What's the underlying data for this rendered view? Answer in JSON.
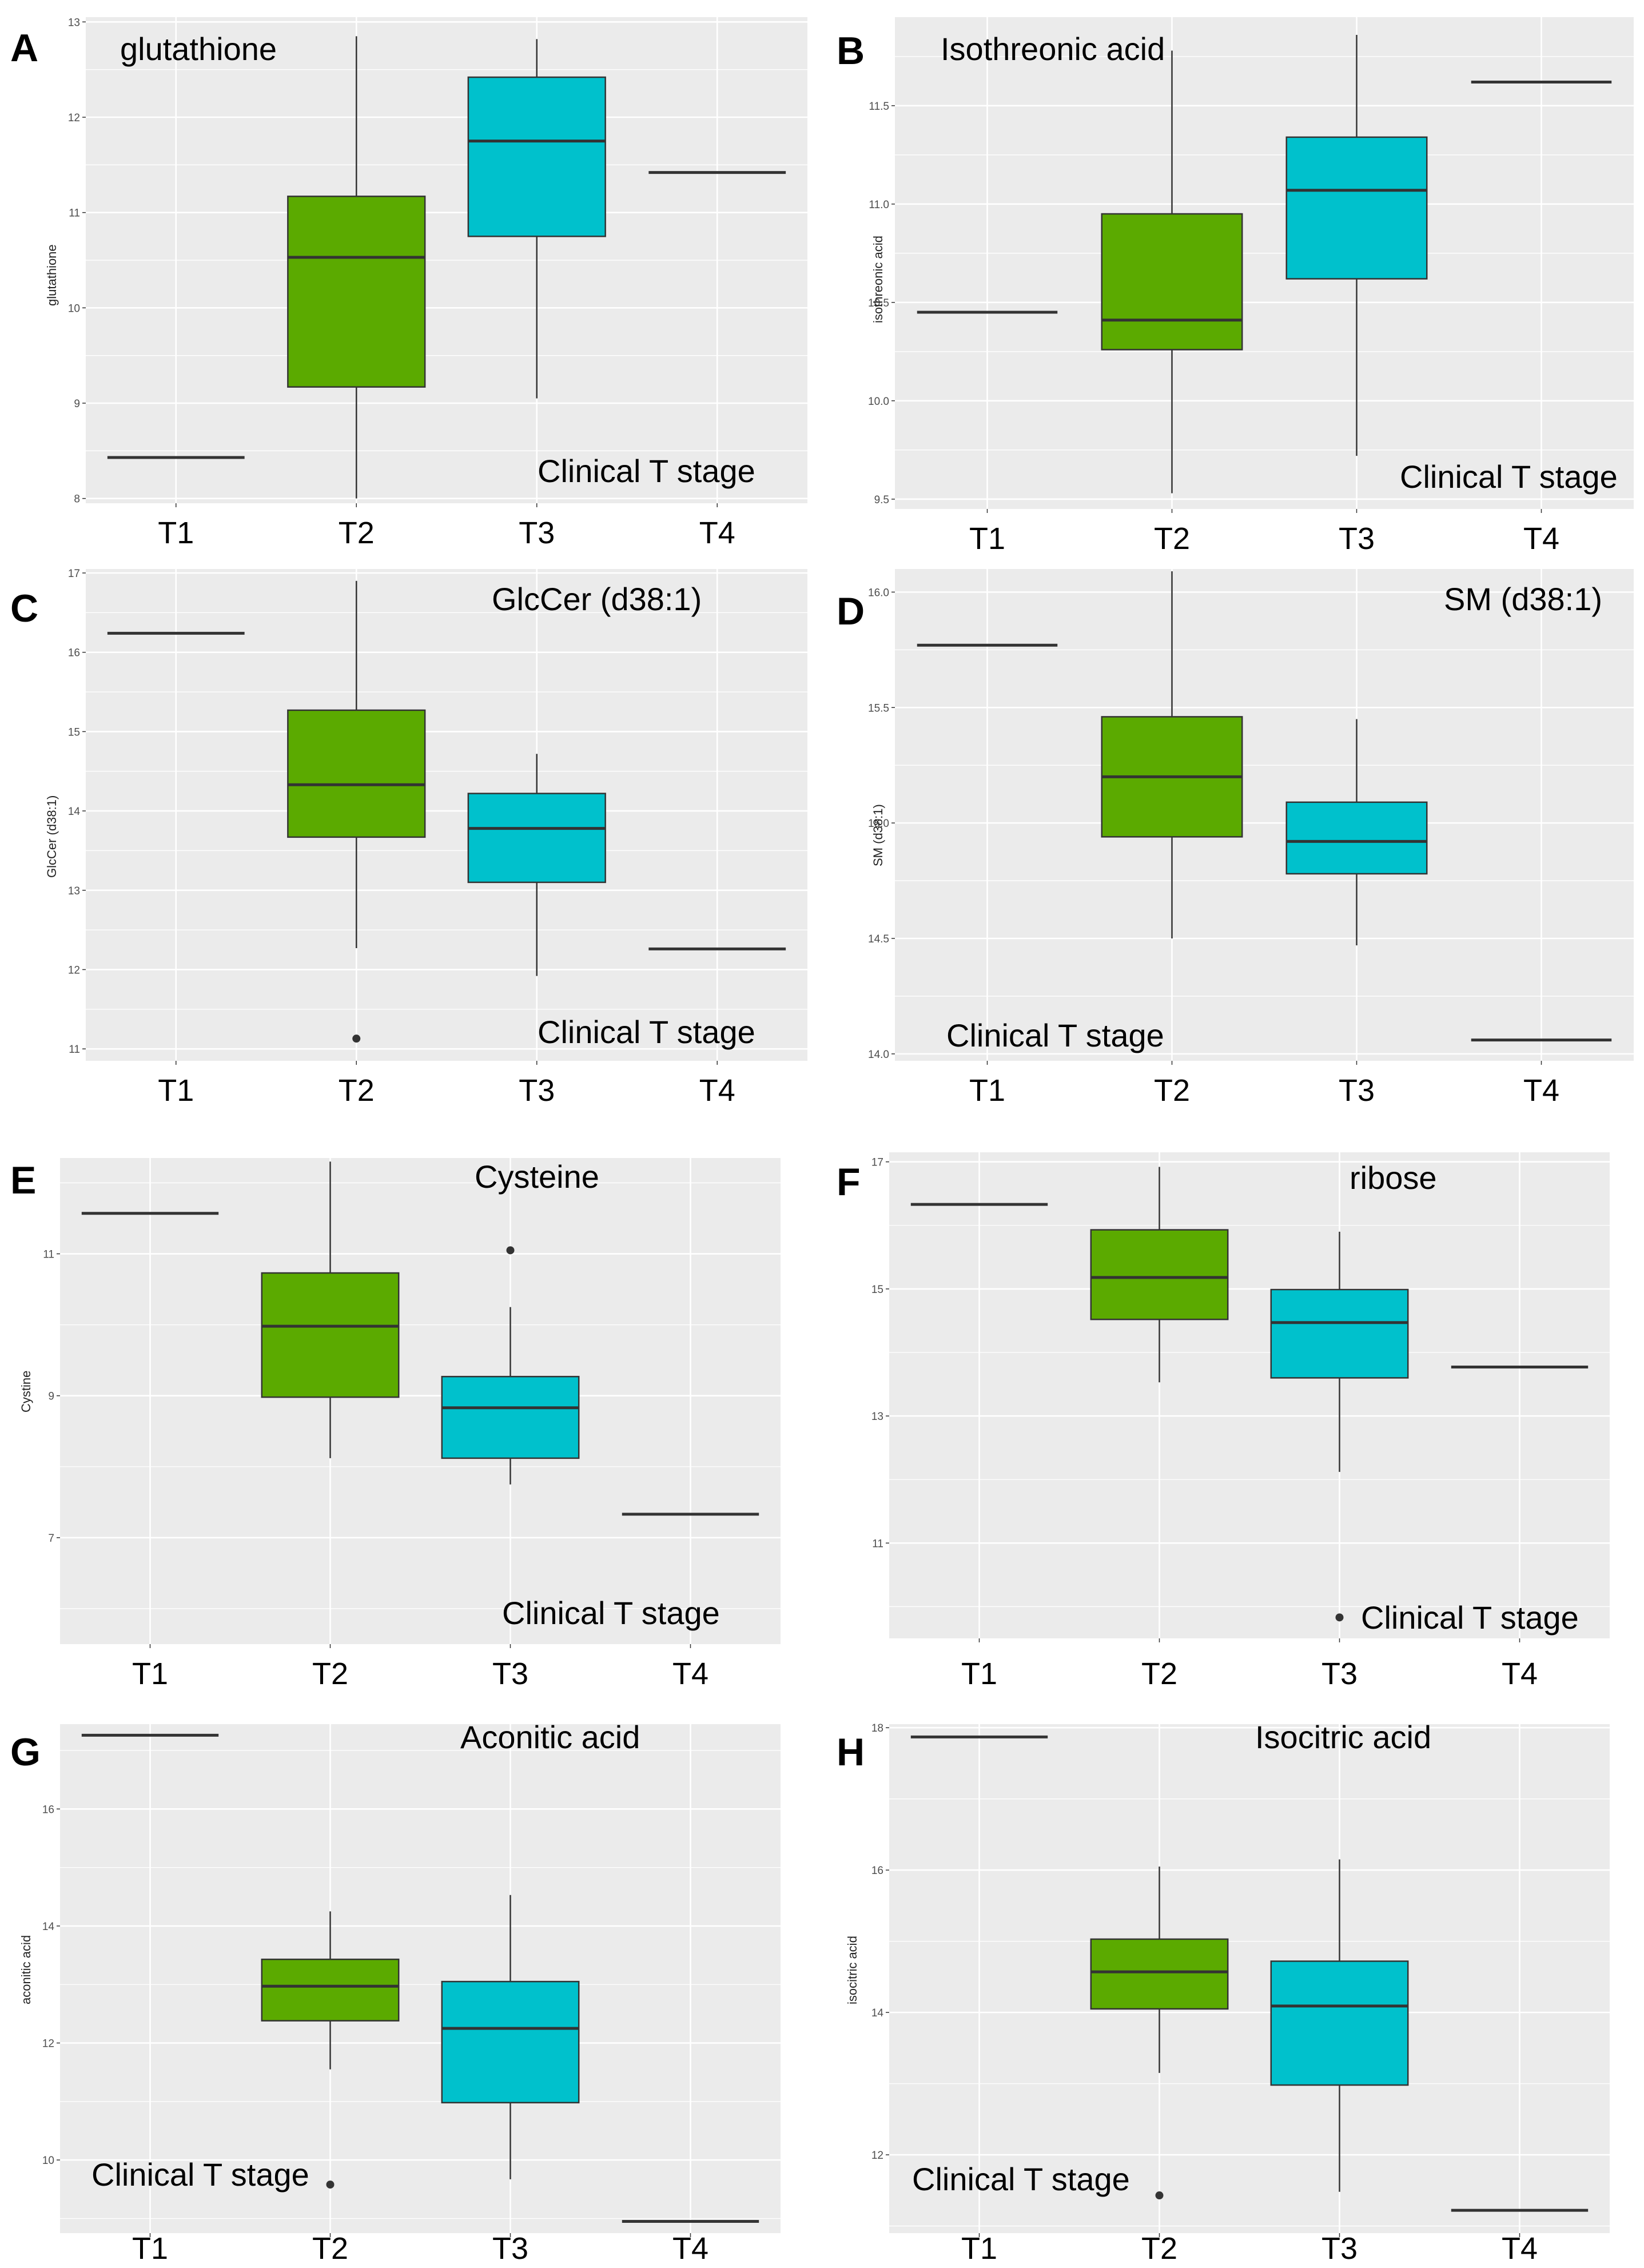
{
  "figure": {
    "colors": {
      "panel_bg": "#EBEBEB",
      "grid": "#FFFFFF",
      "T2_fill": "#5BAA00",
      "T3_fill": "#00C1CC",
      "line": "#333333"
    }
  },
  "chart_data": [
    {
      "panel": "A",
      "type": "boxplot",
      "title": "glutathione",
      "ylabel": "glutathione",
      "xlabel": "Clinical T stage",
      "categories": [
        "T1",
        "T2",
        "T3",
        "T4"
      ],
      "ylim": [
        7.95,
        13.05
      ],
      "yticks": [
        8,
        9,
        10,
        11,
        12,
        13
      ],
      "series": [
        {
          "name": "T1",
          "min": 8.43,
          "q1": 8.43,
          "median": 8.43,
          "q3": 8.43,
          "max": 8.43,
          "outliers": []
        },
        {
          "name": "T2",
          "min": 8.0,
          "q1": 9.17,
          "median": 10.53,
          "q3": 11.17,
          "max": 12.85,
          "outliers": []
        },
        {
          "name": "T3",
          "min": 9.05,
          "q1": 10.75,
          "median": 11.75,
          "q3": 12.42,
          "max": 12.82,
          "outliers": []
        },
        {
          "name": "T4",
          "min": 11.42,
          "q1": 11.42,
          "median": 11.42,
          "q3": 11.42,
          "max": 11.42,
          "outliers": []
        }
      ]
    },
    {
      "panel": "B",
      "type": "boxplot",
      "title": "Isothreonic acid",
      "ylabel": "isothreonic acid",
      "xlabel": "Clinical T stage",
      "categories": [
        "T1",
        "T2",
        "T3",
        "T4"
      ],
      "ylim": [
        9.45,
        11.95
      ],
      "yticks": [
        9.5,
        10.0,
        10.5,
        11.0,
        11.5
      ],
      "ytick_labels": [
        "9.5",
        "10.0",
        "10.5",
        "11.0",
        "11.5"
      ],
      "series": [
        {
          "name": "T1",
          "min": 10.45,
          "q1": 10.45,
          "median": 10.45,
          "q3": 10.45,
          "max": 10.45,
          "outliers": []
        },
        {
          "name": "T2",
          "min": 9.53,
          "q1": 10.26,
          "median": 10.41,
          "q3": 10.95,
          "max": 11.78,
          "outliers": []
        },
        {
          "name": "T3",
          "min": 9.72,
          "q1": 10.62,
          "median": 11.07,
          "q3": 11.34,
          "max": 11.86,
          "outliers": []
        },
        {
          "name": "T4",
          "min": 11.62,
          "q1": 11.62,
          "median": 11.62,
          "q3": 11.62,
          "max": 11.62,
          "outliers": []
        }
      ]
    },
    {
      "panel": "C",
      "type": "boxplot",
      "title": "GlcCer (d38:1)",
      "ylabel": "GlcCer (d38:1)",
      "xlabel": "Clinical T stage",
      "categories": [
        "T1",
        "T2",
        "T3",
        "T4"
      ],
      "ylim": [
        10.85,
        17.05
      ],
      "yticks": [
        11,
        12,
        13,
        14,
        15,
        16,
        17
      ],
      "series": [
        {
          "name": "T1",
          "min": 16.24,
          "q1": 16.24,
          "median": 16.24,
          "q3": 16.24,
          "max": 16.24,
          "outliers": []
        },
        {
          "name": "T2",
          "min": 12.27,
          "q1": 13.67,
          "median": 14.33,
          "q3": 15.27,
          "max": 16.9,
          "outliers": [
            11.13
          ]
        },
        {
          "name": "T3",
          "min": 11.92,
          "q1": 13.1,
          "median": 13.78,
          "q3": 14.22,
          "max": 14.72,
          "outliers": []
        },
        {
          "name": "T4",
          "min": 12.26,
          "q1": 12.26,
          "median": 12.26,
          "q3": 12.26,
          "max": 12.26,
          "outliers": []
        }
      ]
    },
    {
      "panel": "D",
      "type": "boxplot",
      "title": "SM (d38:1)",
      "ylabel": "SM (d38:1)",
      "xlabel": "Clinical T stage",
      "categories": [
        "T1",
        "T2",
        "T3",
        "T4"
      ],
      "ylim": [
        13.97,
        16.1
      ],
      "yticks": [
        14.0,
        14.5,
        15.0,
        15.5,
        16.0
      ],
      "ytick_labels": [
        "14.0",
        "14.5",
        "15.0",
        "15.5",
        "16.0"
      ],
      "series": [
        {
          "name": "T1",
          "min": 15.77,
          "q1": 15.77,
          "median": 15.77,
          "q3": 15.77,
          "max": 15.77,
          "outliers": []
        },
        {
          "name": "T2",
          "min": 14.5,
          "q1": 14.94,
          "median": 15.2,
          "q3": 15.46,
          "max": 16.09,
          "outliers": []
        },
        {
          "name": "T3",
          "min": 14.47,
          "q1": 14.78,
          "median": 14.92,
          "q3": 15.09,
          "max": 15.45,
          "outliers": []
        },
        {
          "name": "T4",
          "min": 14.06,
          "q1": 14.06,
          "median": 14.06,
          "q3": 14.06,
          "max": 14.06,
          "outliers": []
        }
      ]
    },
    {
      "panel": "E",
      "type": "boxplot",
      "title": "Cysteine",
      "ylabel": "Cystine",
      "xlabel": "Clinical T stage",
      "categories": [
        "T1",
        "T2",
        "T3",
        "T4"
      ],
      "ylim": [
        5.5,
        12.35
      ],
      "yticks": [
        7,
        9,
        11
      ],
      "series": [
        {
          "name": "T1",
          "min": 11.57,
          "q1": 11.57,
          "median": 11.57,
          "q3": 11.57,
          "max": 11.57,
          "outliers": []
        },
        {
          "name": "T2",
          "min": 8.12,
          "q1": 8.98,
          "median": 9.98,
          "q3": 10.73,
          "max": 12.3,
          "outliers": []
        },
        {
          "name": "T3",
          "min": 7.75,
          "q1": 8.12,
          "median": 8.83,
          "q3": 9.27,
          "max": 10.25,
          "outliers": [
            11.05
          ]
        },
        {
          "name": "T4",
          "min": 7.33,
          "q1": 7.33,
          "median": 7.33,
          "q3": 7.33,
          "max": 7.33,
          "outliers": []
        }
      ]
    },
    {
      "panel": "F",
      "type": "boxplot",
      "title": "ribose",
      "ylabel": "ribose",
      "xlabel": "Clinical T stage",
      "categories": [
        "T1",
        "T2",
        "T3",
        "T4"
      ],
      "ylim": [
        9.5,
        17.15
      ],
      "yticks": [
        11,
        13,
        15,
        17
      ],
      "series": [
        {
          "name": "T1",
          "min": 16.33,
          "q1": 16.33,
          "median": 16.33,
          "q3": 16.33,
          "max": 16.33,
          "outliers": []
        },
        {
          "name": "T2",
          "min": 13.53,
          "q1": 14.52,
          "median": 15.18,
          "q3": 15.93,
          "max": 16.92,
          "outliers": []
        },
        {
          "name": "T3",
          "min": 12.12,
          "q1": 13.6,
          "median": 14.47,
          "q3": 14.99,
          "max": 15.9,
          "outliers": [
            9.83
          ]
        },
        {
          "name": "T4",
          "min": 13.77,
          "q1": 13.77,
          "median": 13.77,
          "q3": 13.77,
          "max": 13.77,
          "outliers": []
        }
      ]
    },
    {
      "panel": "G",
      "type": "boxplot",
      "title": "Aconitic acid",
      "ylabel": "aconitic acid",
      "xlabel": "Clinical T stage",
      "categories": [
        "T1",
        "T2",
        "T3",
        "T4"
      ],
      "ylim": [
        8.75,
        17.45
      ],
      "yticks": [
        10,
        12,
        14,
        16
      ],
      "series": [
        {
          "name": "T1",
          "min": 17.26,
          "q1": 17.26,
          "median": 17.26,
          "q3": 17.26,
          "max": 17.26,
          "outliers": []
        },
        {
          "name": "T2",
          "min": 11.55,
          "q1": 12.38,
          "median": 12.97,
          "q3": 13.43,
          "max": 14.25,
          "outliers": [
            9.58
          ]
        },
        {
          "name": "T3",
          "min": 9.67,
          "q1": 10.98,
          "median": 12.25,
          "q3": 13.05,
          "max": 14.53,
          "outliers": []
        },
        {
          "name": "T4",
          "min": 8.95,
          "q1": 8.95,
          "median": 8.95,
          "q3": 8.95,
          "max": 8.95,
          "outliers": []
        }
      ]
    },
    {
      "panel": "H",
      "type": "boxplot",
      "title": "Isocitric acid",
      "ylabel": "isocitric acid",
      "xlabel": "Clinical T stage",
      "categories": [
        "T1",
        "T2",
        "T3",
        "T4"
      ],
      "ylim": [
        10.9,
        18.05
      ],
      "yticks": [
        12,
        14,
        16,
        18
      ],
      "series": [
        {
          "name": "T1",
          "min": 17.87,
          "q1": 17.87,
          "median": 17.87,
          "q3": 17.87,
          "max": 17.87,
          "outliers": []
        },
        {
          "name": "T2",
          "min": 13.15,
          "q1": 14.05,
          "median": 14.57,
          "q3": 15.03,
          "max": 16.05,
          "outliers": [
            11.43
          ]
        },
        {
          "name": "T3",
          "min": 11.48,
          "q1": 12.98,
          "median": 14.09,
          "q3": 14.72,
          "max": 16.15,
          "outliers": []
        },
        {
          "name": "T4",
          "min": 11.22,
          "q1": 11.22,
          "median": 11.22,
          "q3": 11.22,
          "max": 11.22,
          "outliers": []
        }
      ]
    }
  ]
}
